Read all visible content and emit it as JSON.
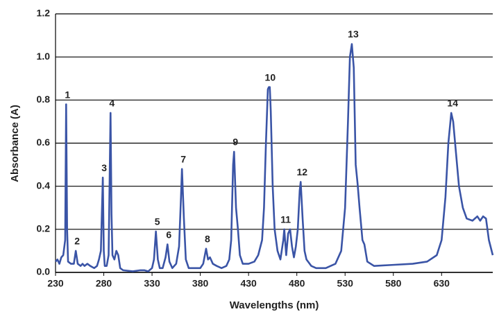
{
  "chart_data": {
    "type": "line",
    "xlabel": "Wavelengths  (nm)",
    "ylabel": "Absorbance (A)",
    "xlim": [
      230,
      683
    ],
    "xticks": [
      230,
      280,
      330,
      380,
      430,
      480,
      530,
      580,
      630
    ],
    "ylim": [
      0,
      1.2
    ],
    "yticks": [
      {
        "value": 0,
        "label": "0.0"
      },
      0.2,
      0.4,
      0.6,
      0.8,
      {
        "value": 1,
        "label": "1.0"
      },
      1.2
    ],
    "grid": true,
    "series": [
      {
        "color": "#3a54a6",
        "x": [
          230,
          232,
          234,
          236,
          238,
          240,
          241,
          242,
          243,
          246,
          249,
          251,
          253,
          256,
          258,
          260,
          263,
          266,
          270,
          273,
          275,
          277,
          279,
          280,
          281,
          283,
          285,
          287,
          288,
          289,
          291,
          293,
          295,
          297,
          300,
          310,
          318,
          322,
          326,
          330,
          332,
          334,
          336,
          338,
          341,
          344,
          346,
          348,
          351,
          355,
          358,
          360,
          361,
          363,
          365,
          368,
          375,
          380,
          383,
          386,
          388,
          390,
          393,
          397,
          402,
          407,
          410,
          412,
          414,
          415,
          417,
          419,
          421,
          424,
          430,
          436,
          440,
          444,
          446,
          448,
          450,
          451,
          452,
          453,
          455,
          457,
          460,
          463,
          466,
          467,
          469,
          471,
          473,
          475,
          477,
          479,
          481,
          483,
          484,
          486,
          488,
          490,
          495,
          500,
          510,
          520,
          526,
          530,
          533,
          535,
          537,
          539,
          541,
          543,
          545,
          548,
          550,
          553,
          560,
          580,
          600,
          615,
          625,
          630,
          634,
          637,
          640,
          642,
          645,
          648,
          652,
          656,
          662,
          667,
          670,
          673,
          676,
          679,
          683
        ],
        "values": [
          0.05,
          0.06,
          0.04,
          0.07,
          0.08,
          0.15,
          0.78,
          0.2,
          0.05,
          0.04,
          0.04,
          0.1,
          0.04,
          0.03,
          0.04,
          0.03,
          0.04,
          0.03,
          0.02,
          0.03,
          0.06,
          0.1,
          0.44,
          0.1,
          0.03,
          0.03,
          0.08,
          0.74,
          0.27,
          0.08,
          0.06,
          0.1,
          0.08,
          0.02,
          0.01,
          0.005,
          0.01,
          0.01,
          0.005,
          0.02,
          0.06,
          0.19,
          0.06,
          0.02,
          0.02,
          0.07,
          0.13,
          0.05,
          0.02,
          0.04,
          0.12,
          0.35,
          0.48,
          0.25,
          0.06,
          0.02,
          0.02,
          0.02,
          0.04,
          0.11,
          0.06,
          0.07,
          0.04,
          0.03,
          0.02,
          0.03,
          0.06,
          0.15,
          0.5,
          0.56,
          0.3,
          0.2,
          0.08,
          0.04,
          0.04,
          0.05,
          0.08,
          0.15,
          0.3,
          0.6,
          0.85,
          0.86,
          0.86,
          0.75,
          0.4,
          0.2,
          0.1,
          0.06,
          0.15,
          0.2,
          0.08,
          0.18,
          0.2,
          0.12,
          0.07,
          0.12,
          0.2,
          0.38,
          0.42,
          0.25,
          0.1,
          0.06,
          0.03,
          0.02,
          0.02,
          0.04,
          0.1,
          0.3,
          0.7,
          1.0,
          1.06,
          0.95,
          0.5,
          0.41,
          0.3,
          0.15,
          0.13,
          0.05,
          0.03,
          0.035,
          0.04,
          0.05,
          0.08,
          0.15,
          0.35,
          0.6,
          0.74,
          0.7,
          0.55,
          0.4,
          0.3,
          0.25,
          0.24,
          0.26,
          0.24,
          0.26,
          0.25,
          0.15,
          0.08
        ]
      }
    ],
    "annotations": [
      {
        "text": "1",
        "x": 241,
        "y": 0.78
      },
      {
        "text": "2",
        "x": 251,
        "y": 0.1
      },
      {
        "text": "3",
        "x": 279,
        "y": 0.44
      },
      {
        "text": "4",
        "x": 287,
        "y": 0.74
      },
      {
        "text": "5",
        "x": 334,
        "y": 0.19
      },
      {
        "text": "6",
        "x": 346,
        "y": 0.13
      },
      {
        "text": "7",
        "x": 361,
        "y": 0.48
      },
      {
        "text": "8",
        "x": 386,
        "y": 0.11
      },
      {
        "text": "9",
        "x": 415,
        "y": 0.56
      },
      {
        "text": "10",
        "x": 451,
        "y": 0.86
      },
      {
        "text": "11",
        "x": 467,
        "y": 0.2
      },
      {
        "text": "12",
        "x": 484,
        "y": 0.42
      },
      {
        "text": "13",
        "x": 537,
        "y": 1.06
      },
      {
        "text": "14",
        "x": 640,
        "y": 0.74
      }
    ]
  }
}
